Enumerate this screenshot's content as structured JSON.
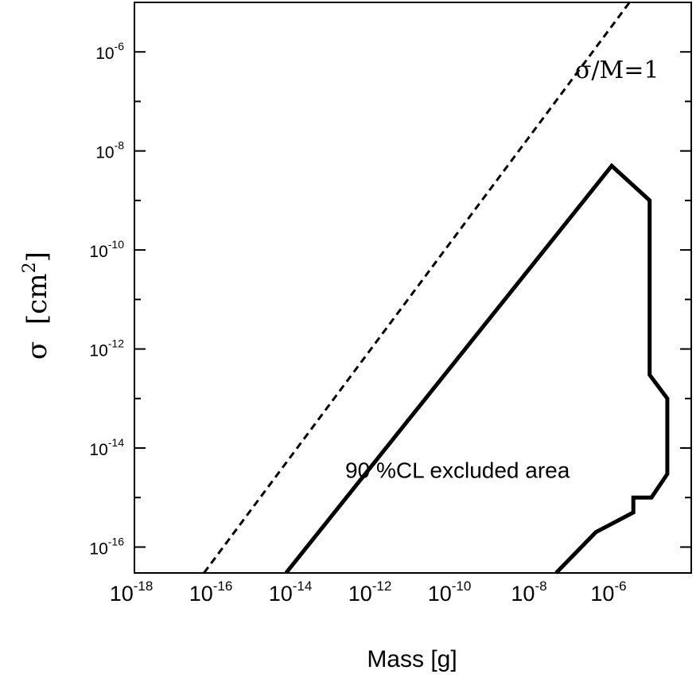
{
  "chart_data": {
    "type": "line",
    "xlabel": "Mass [g]",
    "ylabel_symbol": "σ",
    "ylabel_unit": "[cm",
    "ylabel_exp": "2",
    "ylabel_close": "]",
    "xscale": "log",
    "yscale": "log",
    "xlim": [
      1e-18,
      0.0001
    ],
    "ylim": [
      3e-17,
      1e-05
    ],
    "x_ticks": [
      {
        "base": "10",
        "exp": "-18",
        "value": 1e-18
      },
      {
        "base": "10",
        "exp": "-16",
        "value": 1e-16
      },
      {
        "base": "10",
        "exp": "-14",
        "value": 1e-14
      },
      {
        "base": "10",
        "exp": "-12",
        "value": 1e-12
      },
      {
        "base": "10",
        "exp": "-10",
        "value": 1e-10
      },
      {
        "base": "10",
        "exp": "-8",
        "value": 1e-08
      },
      {
        "base": "10",
        "exp": "-6",
        "value": 1e-06
      }
    ],
    "y_ticks": [
      {
        "base": "10",
        "exp": "-6",
        "value": 1e-06
      },
      {
        "base": "10",
        "exp": "-8",
        "value": 1e-08
      },
      {
        "base": "10",
        "exp": "-10",
        "value": 1e-10
      },
      {
        "base": "10",
        "exp": "-12",
        "value": 1e-12
      },
      {
        "base": "10",
        "exp": "-14",
        "value": 1e-14
      },
      {
        "base": "10",
        "exp": "-16",
        "value": 1e-16
      }
    ],
    "y_minor_ticks": [
      1e-05,
      1e-07,
      1e-09,
      1e-11,
      1e-13,
      1e-15
    ],
    "grid": false,
    "series": [
      {
        "style": "dashed",
        "points": [
          [
            5.6e-17,
            3e-17
          ],
          [
            2.8e-06,
            1e-05
          ]
        ]
      },
      {
        "style": "solid",
        "points": [
          [
            6.5e-15,
            3e-17
          ],
          [
            1e-06,
            5e-09
          ],
          [
            9e-06,
            1e-09
          ],
          [
            9e-06,
            3e-13
          ],
          [
            2.5e-05,
            1e-13
          ],
          [
            2.5e-05,
            3e-15
          ],
          [
            1e-05,
            1e-15
          ],
          [
            3.5e-06,
            1e-15
          ],
          [
            3.5e-06,
            5e-16
          ],
          [
            4e-07,
            2e-16
          ],
          [
            4e-08,
            3e-17
          ]
        ]
      }
    ],
    "annotations": [
      {
        "text": "σ/M=1",
        "x": 1.2e-07,
        "y": 3e-07
      },
      {
        "text": "90 %CL excluded area",
        "x": 2e-13,
        "y": 2.5e-15
      }
    ]
  }
}
